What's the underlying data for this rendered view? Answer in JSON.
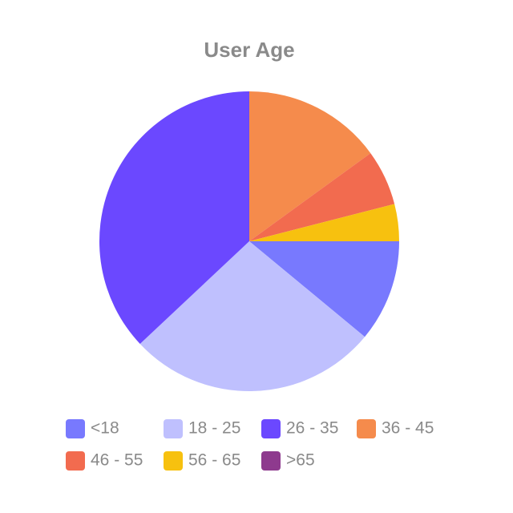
{
  "chart_data": {
    "type": "pie",
    "title": "User Age",
    "categories": [
      "<18",
      "18 - 25",
      "26 - 35",
      "36 - 45",
      "46 - 55",
      "56 - 65",
      ">65"
    ],
    "values": [
      11,
      27,
      37,
      15,
      6,
      4,
      0
    ],
    "colors": [
      "#7879fe",
      "#bfc0fe",
      "#6b48ff",
      "#f58b4c",
      "#f26b4f",
      "#f7c10f",
      "#8e3a8e"
    ]
  }
}
